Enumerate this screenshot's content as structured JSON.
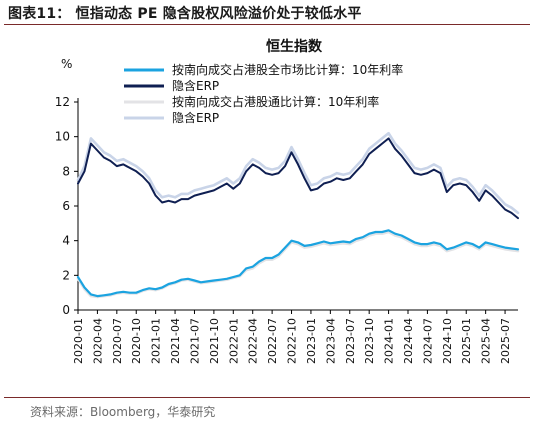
{
  "figure": {
    "title": "图表11：  恒指动态 PE 隐含股权风险溢价处于较低水平",
    "source": "资料来源：Bloomberg，华泰研究"
  },
  "chart_data": {
    "type": "line",
    "title": "恒生指数",
    "ylabel": "%",
    "ylim": [
      0,
      12
    ],
    "yticks": [
      0,
      2,
      4,
      6,
      8,
      10,
      12
    ],
    "xlim": [
      "2020-01",
      "2025-09"
    ],
    "xticks": [
      "2020-01",
      "2020-04",
      "2020-07",
      "2020-10",
      "2021-01",
      "2021-04",
      "2021-07",
      "2021-10",
      "2022-01",
      "2022-04",
      "2022-07",
      "2022-10",
      "2023-01",
      "2023-04",
      "2023-07",
      "2023-10",
      "2024-01",
      "2024-04",
      "2024-07",
      "2024-10",
      "2025-01",
      "2025-04",
      "2025-07"
    ],
    "grid": false,
    "legend_position": "top-left",
    "series": [
      {
        "name": "按南向成交占港股全市场比计算：10年利率",
        "color": "#1ba3e0",
        "points": [
          [
            "2020-01",
            1.9
          ],
          [
            "2020-02",
            1.3
          ],
          [
            "2020-03",
            0.9
          ],
          [
            "2020-04",
            0.8
          ],
          [
            "2020-05",
            0.85
          ],
          [
            "2020-06",
            0.9
          ],
          [
            "2020-07",
            1.0
          ],
          [
            "2020-08",
            1.05
          ],
          [
            "2020-09",
            1.0
          ],
          [
            "2020-10",
            1.0
          ],
          [
            "2020-11",
            1.15
          ],
          [
            "2020-12",
            1.25
          ],
          [
            "2021-01",
            1.2
          ],
          [
            "2021-02",
            1.3
          ],
          [
            "2021-03",
            1.5
          ],
          [
            "2021-04",
            1.6
          ],
          [
            "2021-05",
            1.75
          ],
          [
            "2021-06",
            1.8
          ],
          [
            "2021-07",
            1.7
          ],
          [
            "2021-08",
            1.6
          ],
          [
            "2021-09",
            1.65
          ],
          [
            "2021-10",
            1.7
          ],
          [
            "2021-11",
            1.75
          ],
          [
            "2021-12",
            1.8
          ],
          [
            "2022-01",
            1.9
          ],
          [
            "2022-02",
            2.0
          ],
          [
            "2022-03",
            2.4
          ],
          [
            "2022-04",
            2.5
          ],
          [
            "2022-05",
            2.8
          ],
          [
            "2022-06",
            3.0
          ],
          [
            "2022-07",
            3.0
          ],
          [
            "2022-08",
            3.2
          ],
          [
            "2022-09",
            3.6
          ],
          [
            "2022-10",
            4.0
          ],
          [
            "2022-11",
            3.9
          ],
          [
            "2022-12",
            3.7
          ],
          [
            "2023-01",
            3.75
          ],
          [
            "2023-02",
            3.85
          ],
          [
            "2023-03",
            3.95
          ],
          [
            "2023-04",
            3.85
          ],
          [
            "2023-05",
            3.9
          ],
          [
            "2023-06",
            3.95
          ],
          [
            "2023-07",
            3.9
          ],
          [
            "2023-08",
            4.1
          ],
          [
            "2023-09",
            4.2
          ],
          [
            "2023-10",
            4.4
          ],
          [
            "2023-11",
            4.5
          ],
          [
            "2023-12",
            4.5
          ],
          [
            "2024-01",
            4.6
          ],
          [
            "2024-02",
            4.4
          ],
          [
            "2024-03",
            4.3
          ],
          [
            "2024-04",
            4.1
          ],
          [
            "2024-05",
            3.9
          ],
          [
            "2024-06",
            3.8
          ],
          [
            "2024-07",
            3.8
          ],
          [
            "2024-08",
            3.9
          ],
          [
            "2024-09",
            3.8
          ],
          [
            "2024-10",
            3.5
          ],
          [
            "2024-11",
            3.6
          ],
          [
            "2024-12",
            3.75
          ],
          [
            "2025-01",
            3.9
          ],
          [
            "2025-02",
            3.8
          ],
          [
            "2025-03",
            3.6
          ],
          [
            "2025-04",
            3.9
          ],
          [
            "2025-05",
            3.8
          ],
          [
            "2025-06",
            3.7
          ],
          [
            "2025-07",
            3.6
          ],
          [
            "2025-08",
            3.55
          ],
          [
            "2025-09",
            3.5
          ]
        ]
      },
      {
        "name": "隐含ERP",
        "color": "#0f1f52",
        "points": [
          [
            "2020-01",
            7.3
          ],
          [
            "2020-02",
            8.0
          ],
          [
            "2020-03",
            9.6
          ],
          [
            "2020-04",
            9.2
          ],
          [
            "2020-05",
            8.8
          ],
          [
            "2020-06",
            8.6
          ],
          [
            "2020-07",
            8.3
          ],
          [
            "2020-08",
            8.4
          ],
          [
            "2020-09",
            8.2
          ],
          [
            "2020-10",
            8.0
          ],
          [
            "2020-11",
            7.7
          ],
          [
            "2020-12",
            7.3
          ],
          [
            "2021-01",
            6.6
          ],
          [
            "2021-02",
            6.2
          ],
          [
            "2021-03",
            6.3
          ],
          [
            "2021-04",
            6.2
          ],
          [
            "2021-05",
            6.4
          ],
          [
            "2021-06",
            6.4
          ],
          [
            "2021-07",
            6.6
          ],
          [
            "2021-08",
            6.7
          ],
          [
            "2021-09",
            6.8
          ],
          [
            "2021-10",
            6.9
          ],
          [
            "2021-11",
            7.1
          ],
          [
            "2021-12",
            7.3
          ],
          [
            "2022-01",
            7.0
          ],
          [
            "2022-02",
            7.3
          ],
          [
            "2022-03",
            8.0
          ],
          [
            "2022-04",
            8.4
          ],
          [
            "2022-05",
            8.2
          ],
          [
            "2022-06",
            7.9
          ],
          [
            "2022-07",
            7.8
          ],
          [
            "2022-08",
            7.9
          ],
          [
            "2022-09",
            8.3
          ],
          [
            "2022-10",
            9.1
          ],
          [
            "2022-11",
            8.4
          ],
          [
            "2022-12",
            7.6
          ],
          [
            "2023-01",
            6.9
          ],
          [
            "2023-02",
            7.0
          ],
          [
            "2023-03",
            7.3
          ],
          [
            "2023-04",
            7.4
          ],
          [
            "2023-05",
            7.6
          ],
          [
            "2023-06",
            7.5
          ],
          [
            "2023-07",
            7.6
          ],
          [
            "2023-08",
            8.0
          ],
          [
            "2023-09",
            8.4
          ],
          [
            "2023-10",
            9.0
          ],
          [
            "2023-11",
            9.3
          ],
          [
            "2023-12",
            9.6
          ],
          [
            "2024-01",
            9.9
          ],
          [
            "2024-02",
            9.3
          ],
          [
            "2024-03",
            8.9
          ],
          [
            "2024-04",
            8.4
          ],
          [
            "2024-05",
            7.9
          ],
          [
            "2024-06",
            7.8
          ],
          [
            "2024-07",
            7.9
          ],
          [
            "2024-08",
            8.1
          ],
          [
            "2024-09",
            7.9
          ],
          [
            "2024-10",
            6.8
          ],
          [
            "2024-11",
            7.2
          ],
          [
            "2024-12",
            7.3
          ],
          [
            "2025-01",
            7.2
          ],
          [
            "2025-02",
            6.8
          ],
          [
            "2025-03",
            6.3
          ],
          [
            "2025-04",
            6.9
          ],
          [
            "2025-05",
            6.6
          ],
          [
            "2025-06",
            6.2
          ],
          [
            "2025-07",
            5.8
          ],
          [
            "2025-08",
            5.6
          ],
          [
            "2025-09",
            5.3
          ]
        ]
      },
      {
        "name": "按南向成交占港股通比计算：10年利率",
        "color": "#e3e3e6",
        "points": [
          [
            "2020-01",
            1.8
          ],
          [
            "2020-02",
            1.2
          ],
          [
            "2020-03",
            0.8
          ],
          [
            "2020-04",
            0.75
          ],
          [
            "2020-05",
            0.8
          ],
          [
            "2020-06",
            0.85
          ],
          [
            "2020-07",
            0.95
          ],
          [
            "2020-08",
            1.0
          ],
          [
            "2020-09",
            0.95
          ],
          [
            "2020-10",
            0.95
          ],
          [
            "2020-11",
            1.1
          ],
          [
            "2020-12",
            1.2
          ],
          [
            "2021-01",
            1.15
          ],
          [
            "2021-02",
            1.25
          ],
          [
            "2021-03",
            1.45
          ],
          [
            "2021-04",
            1.55
          ],
          [
            "2021-05",
            1.7
          ],
          [
            "2021-06",
            1.75
          ],
          [
            "2021-07",
            1.65
          ],
          [
            "2021-08",
            1.55
          ],
          [
            "2021-09",
            1.6
          ],
          [
            "2021-10",
            1.65
          ],
          [
            "2021-11",
            1.7
          ],
          [
            "2021-12",
            1.75
          ],
          [
            "2022-01",
            1.85
          ],
          [
            "2022-02",
            1.95
          ],
          [
            "2022-03",
            2.3
          ],
          [
            "2022-04",
            2.4
          ],
          [
            "2022-05",
            2.7
          ],
          [
            "2022-06",
            2.9
          ],
          [
            "2022-07",
            2.9
          ],
          [
            "2022-08",
            3.1
          ],
          [
            "2022-09",
            3.5
          ],
          [
            "2022-10",
            3.9
          ],
          [
            "2022-11",
            3.8
          ],
          [
            "2022-12",
            3.6
          ],
          [
            "2023-01",
            3.65
          ],
          [
            "2023-02",
            3.75
          ],
          [
            "2023-03",
            3.85
          ],
          [
            "2023-04",
            3.75
          ],
          [
            "2023-05",
            3.8
          ],
          [
            "2023-06",
            3.85
          ],
          [
            "2023-07",
            3.8
          ],
          [
            "2023-08",
            4.0
          ],
          [
            "2023-09",
            4.1
          ],
          [
            "2023-10",
            4.3
          ],
          [
            "2023-11",
            4.4
          ],
          [
            "2023-12",
            4.4
          ],
          [
            "2024-01",
            4.5
          ],
          [
            "2024-02",
            4.3
          ],
          [
            "2024-03",
            4.2
          ],
          [
            "2024-04",
            4.0
          ],
          [
            "2024-05",
            3.8
          ],
          [
            "2024-06",
            3.7
          ],
          [
            "2024-07",
            3.7
          ],
          [
            "2024-08",
            3.8
          ],
          [
            "2024-09",
            3.7
          ],
          [
            "2024-10",
            3.4
          ],
          [
            "2024-11",
            3.5
          ],
          [
            "2024-12",
            3.65
          ],
          [
            "2025-01",
            3.8
          ],
          [
            "2025-02",
            3.7
          ],
          [
            "2025-03",
            3.5
          ],
          [
            "2025-04",
            3.8
          ],
          [
            "2025-05",
            3.7
          ],
          [
            "2025-06",
            3.6
          ],
          [
            "2025-07",
            3.5
          ],
          [
            "2025-08",
            3.45
          ],
          [
            "2025-09",
            3.4
          ]
        ]
      },
      {
        "name": "隐含ERP",
        "color": "#c9d4e8",
        "points": [
          [
            "2020-01",
            7.5
          ],
          [
            "2020-02",
            8.3
          ],
          [
            "2020-03",
            9.9
          ],
          [
            "2020-04",
            9.5
          ],
          [
            "2020-05",
            9.1
          ],
          [
            "2020-06",
            8.9
          ],
          [
            "2020-07",
            8.6
          ],
          [
            "2020-08",
            8.7
          ],
          [
            "2020-09",
            8.5
          ],
          [
            "2020-10",
            8.3
          ],
          [
            "2020-11",
            8.0
          ],
          [
            "2020-12",
            7.6
          ],
          [
            "2021-01",
            6.9
          ],
          [
            "2021-02",
            6.5
          ],
          [
            "2021-03",
            6.6
          ],
          [
            "2021-04",
            6.5
          ],
          [
            "2021-05",
            6.7
          ],
          [
            "2021-06",
            6.7
          ],
          [
            "2021-07",
            6.9
          ],
          [
            "2021-08",
            7.0
          ],
          [
            "2021-09",
            7.1
          ],
          [
            "2021-10",
            7.2
          ],
          [
            "2021-11",
            7.4
          ],
          [
            "2021-12",
            7.6
          ],
          [
            "2022-01",
            7.3
          ],
          [
            "2022-02",
            7.6
          ],
          [
            "2022-03",
            8.3
          ],
          [
            "2022-04",
            8.7
          ],
          [
            "2022-05",
            8.5
          ],
          [
            "2022-06",
            8.2
          ],
          [
            "2022-07",
            8.1
          ],
          [
            "2022-08",
            8.2
          ],
          [
            "2022-09",
            8.6
          ],
          [
            "2022-10",
            9.4
          ],
          [
            "2022-11",
            8.7
          ],
          [
            "2022-12",
            7.9
          ],
          [
            "2023-01",
            7.2
          ],
          [
            "2023-02",
            7.3
          ],
          [
            "2023-03",
            7.6
          ],
          [
            "2023-04",
            7.7
          ],
          [
            "2023-05",
            7.9
          ],
          [
            "2023-06",
            7.8
          ],
          [
            "2023-07",
            7.9
          ],
          [
            "2023-08",
            8.3
          ],
          [
            "2023-09",
            8.7
          ],
          [
            "2023-10",
            9.3
          ],
          [
            "2023-11",
            9.6
          ],
          [
            "2023-12",
            9.9
          ],
          [
            "2024-01",
            10.2
          ],
          [
            "2024-02",
            9.6
          ],
          [
            "2024-03",
            9.2
          ],
          [
            "2024-04",
            8.7
          ],
          [
            "2024-05",
            8.2
          ],
          [
            "2024-06",
            8.1
          ],
          [
            "2024-07",
            8.2
          ],
          [
            "2024-08",
            8.4
          ],
          [
            "2024-09",
            8.2
          ],
          [
            "2024-10",
            7.1
          ],
          [
            "2024-11",
            7.5
          ],
          [
            "2024-12",
            7.6
          ],
          [
            "2025-01",
            7.5
          ],
          [
            "2025-02",
            7.1
          ],
          [
            "2025-03",
            6.6
          ],
          [
            "2025-04",
            7.2
          ],
          [
            "2025-05",
            6.9
          ],
          [
            "2025-06",
            6.5
          ],
          [
            "2025-07",
            6.1
          ],
          [
            "2025-08",
            5.9
          ],
          [
            "2025-09",
            5.6
          ]
        ]
      }
    ]
  }
}
